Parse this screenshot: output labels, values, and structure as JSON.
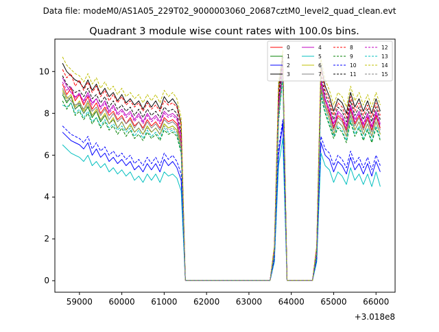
{
  "header": {
    "datafile": "Data file: modeM0/AS1A05_229T02_9000003060_20687cztM0_level2_quad_clean.evt"
  },
  "chart_data": {
    "type": "line",
    "title": "Quadrant 3 module wise count rates with 100.0s bins.",
    "xlabel": "",
    "ylabel": "",
    "offset_label": "+3.018e8",
    "xlim": [
      58420,
      66450
    ],
    "ylim": [
      -0.55,
      11.55
    ],
    "xticks": [
      59000,
      60000,
      61000,
      62000,
      63000,
      64000,
      65000,
      66000
    ],
    "yticks": [
      0,
      2,
      4,
      6,
      8,
      10
    ],
    "legend_position": "top-right",
    "colors": [
      "#ff0000",
      "#008000",
      "#0000ff",
      "#000000",
      "#bf00bf",
      "#00bfbf",
      "#bfbf00",
      "#808080",
      "#ff0000",
      "#008000",
      "#0000ff",
      "#000000",
      "#bf00bf",
      "#00bfbf",
      "#bfbf00",
      "#808080"
    ],
    "styles": [
      "solid",
      "solid",
      "solid",
      "solid",
      "solid",
      "solid",
      "solid",
      "solid",
      "dashed",
      "dashed",
      "dashed",
      "dashed",
      "dashed",
      "dashed",
      "dashed",
      "dashed"
    ],
    "x": [
      58600,
      58700,
      58800,
      58900,
      59000,
      59100,
      59200,
      59300,
      59400,
      59500,
      59600,
      59700,
      59800,
      59900,
      60000,
      60100,
      60200,
      60300,
      60400,
      60500,
      60600,
      60700,
      60800,
      60900,
      61000,
      61100,
      61200,
      61300,
      61400,
      61500,
      61600,
      62500,
      63000,
      63500,
      63600,
      63700,
      63800,
      63900,
      64000,
      64500,
      64600,
      64700,
      64800,
      64900,
      65000,
      65100,
      65200,
      65300,
      65400,
      65500,
      65600,
      65700,
      65800,
      65900,
      66000,
      66100
    ],
    "series": [
      {
        "name": "0",
        "values": [
          9.4,
          8.9,
          9.2,
          8.6,
          8.9,
          8.4,
          8.8,
          8.2,
          8.5,
          8.0,
          8.3,
          7.9,
          8.1,
          7.7,
          7.9,
          7.5,
          7.8,
          7.4,
          7.6,
          7.3,
          7.7,
          7.4,
          7.6,
          7.3,
          7.8,
          7.6,
          7.7,
          7.5,
          6.6,
          0.02,
          0.02,
          0.02,
          0.02,
          0.02,
          1.4,
          8.2,
          10.4,
          0.02,
          0.02,
          0.02,
          1.4,
          9.5,
          8.6,
          8.0,
          7.3,
          7.9,
          7.7,
          7.2,
          8.2,
          7.5,
          7.9,
          7.3,
          7.8,
          7.2,
          7.9,
          7.3
        ]
      },
      {
        "name": "1",
        "values": [
          8.9,
          8.5,
          8.8,
          8.2,
          8.4,
          8.0,
          8.3,
          7.8,
          8.1,
          7.6,
          7.9,
          7.5,
          7.7,
          7.3,
          7.6,
          7.2,
          7.5,
          7.1,
          7.3,
          7.0,
          7.4,
          7.1,
          7.3,
          7.0,
          7.5,
          7.3,
          7.4,
          7.2,
          6.3,
          0.02,
          0.02,
          0.02,
          0.02,
          0.02,
          1.3,
          7.9,
          10.0,
          0.02,
          0.02,
          0.02,
          1.3,
          9.1,
          8.3,
          7.7,
          7.0,
          7.6,
          7.4,
          6.9,
          7.9,
          7.2,
          7.6,
          7.0,
          7.5,
          6.9,
          7.6,
          7.0
        ]
      },
      {
        "name": "2",
        "values": [
          7.1,
          6.9,
          6.7,
          6.6,
          6.5,
          6.3,
          6.6,
          6.0,
          6.3,
          5.9,
          6.1,
          5.7,
          5.9,
          5.6,
          5.8,
          5.5,
          5.7,
          5.3,
          5.5,
          5.2,
          5.6,
          5.3,
          5.6,
          5.2,
          5.8,
          5.5,
          5.7,
          5.4,
          4.8,
          0.02,
          0.02,
          0.02,
          0.02,
          0.02,
          1.0,
          6.0,
          7.5,
          0.02,
          0.02,
          0.02,
          1.0,
          6.6,
          6.0,
          5.8,
          5.2,
          5.7,
          5.5,
          5.1,
          5.9,
          5.3,
          5.6,
          5.1,
          5.6,
          5.0,
          5.7,
          5.2
        ]
      },
      {
        "name": "3",
        "values": [
          10.4,
          10.0,
          9.8,
          9.6,
          9.5,
          9.2,
          9.6,
          9.1,
          9.4,
          8.9,
          9.2,
          8.8,
          9.0,
          8.6,
          8.9,
          8.5,
          8.7,
          8.4,
          8.6,
          8.2,
          8.6,
          8.3,
          8.6,
          8.2,
          8.8,
          8.5,
          8.7,
          8.4,
          7.5,
          0.02,
          0.02,
          0.02,
          0.02,
          0.02,
          1.6,
          9.2,
          10.8,
          0.02,
          0.02,
          0.02,
          1.6,
          10.3,
          9.3,
          8.8,
          8.1,
          8.7,
          8.5,
          8.0,
          9.0,
          8.3,
          8.7,
          8.1,
          8.6,
          8.0,
          8.7,
          8.1
        ]
      },
      {
        "name": "4",
        "values": [
          9.7,
          9.3,
          9.0,
          8.8,
          8.9,
          8.6,
          9.0,
          8.5,
          8.7,
          8.3,
          8.6,
          8.1,
          8.4,
          8.0,
          8.2,
          7.9,
          8.1,
          7.7,
          8.0,
          7.6,
          8.0,
          7.7,
          7.9,
          7.6,
          8.1,
          7.9,
          8.0,
          7.8,
          6.9,
          0.02,
          0.02,
          0.02,
          0.02,
          0.02,
          1.5,
          8.5,
          10.3,
          0.02,
          0.02,
          0.02,
          1.5,
          9.6,
          8.7,
          8.2,
          7.5,
          8.1,
          7.9,
          7.4,
          8.4,
          7.7,
          8.1,
          7.5,
          8.0,
          7.4,
          8.1,
          7.5
        ]
      },
      {
        "name": "5",
        "values": [
          6.5,
          6.3,
          6.1,
          6.0,
          5.9,
          5.7,
          6.0,
          5.5,
          5.7,
          5.4,
          5.6,
          5.2,
          5.4,
          5.1,
          5.3,
          5.0,
          5.2,
          4.8,
          5.0,
          4.7,
          5.1,
          4.8,
          5.1,
          4.7,
          5.2,
          5.0,
          5.1,
          4.9,
          4.3,
          0.02,
          0.02,
          0.02,
          0.02,
          0.02,
          0.9,
          5.5,
          6.8,
          0.02,
          0.02,
          0.02,
          0.9,
          6.1,
          5.5,
          5.3,
          4.7,
          5.2,
          5.0,
          4.6,
          5.4,
          4.8,
          5.1,
          4.6,
          5.1,
          4.5,
          5.2,
          4.5
        ]
      },
      {
        "name": "6",
        "values": [
          9.1,
          8.7,
          8.9,
          8.3,
          8.6,
          8.1,
          8.5,
          7.9,
          8.2,
          7.7,
          8.0,
          7.5,
          7.8,
          7.3,
          7.6,
          7.2,
          7.5,
          7.1,
          7.3,
          7.0,
          7.4,
          7.1,
          7.3,
          7.0,
          7.5,
          7.3,
          7.4,
          7.2,
          6.3,
          0.02,
          0.02,
          0.02,
          0.02,
          0.02,
          1.3,
          7.9,
          10.1,
          0.02,
          0.02,
          0.02,
          1.3,
          9.2,
          8.3,
          7.7,
          7.0,
          7.6,
          7.4,
          6.9,
          7.9,
          7.2,
          7.6,
          7.0,
          7.5,
          6.9,
          7.6,
          7.0
        ]
      },
      {
        "name": "7",
        "values": [
          9.2,
          8.8,
          8.6,
          8.4,
          8.5,
          8.2,
          8.6,
          8.1,
          8.3,
          7.9,
          8.2,
          7.7,
          8.0,
          7.6,
          7.8,
          7.5,
          7.7,
          7.3,
          7.6,
          7.2,
          7.6,
          7.3,
          7.5,
          7.2,
          7.7,
          7.5,
          7.6,
          7.4,
          6.5,
          0.02,
          0.02,
          0.02,
          0.02,
          0.02,
          1.4,
          8.1,
          10.2,
          0.02,
          0.02,
          0.02,
          1.4,
          9.3,
          8.4,
          7.9,
          7.2,
          7.8,
          7.6,
          7.1,
          8.1,
          7.4,
          7.8,
          7.2,
          7.7,
          7.1,
          7.8,
          7.2
        ]
      },
      {
        "name": "8",
        "values": [
          10.1,
          9.7,
          9.9,
          9.3,
          9.6,
          9.1,
          9.5,
          9.0,
          9.3,
          8.8,
          9.1,
          8.6,
          8.9,
          8.5,
          8.8,
          8.4,
          8.6,
          8.3,
          8.5,
          8.1,
          8.5,
          8.2,
          8.4,
          8.1,
          8.6,
          8.4,
          8.5,
          8.3,
          7.4,
          0.02,
          0.02,
          0.02,
          0.02,
          0.02,
          1.6,
          9.0,
          10.6,
          0.02,
          0.02,
          0.02,
          1.6,
          10.1,
          9.1,
          8.6,
          7.9,
          8.5,
          8.3,
          7.8,
          8.8,
          8.1,
          8.5,
          7.9,
          8.4,
          7.8,
          8.5,
          7.9
        ]
      },
      {
        "name": "9",
        "values": [
          8.6,
          8.2,
          8.5,
          7.9,
          8.1,
          7.7,
          8.0,
          7.5,
          7.8,
          7.3,
          7.6,
          7.2,
          7.4,
          7.0,
          7.3,
          6.9,
          7.2,
          6.8,
          7.0,
          6.7,
          7.1,
          6.8,
          7.0,
          6.7,
          7.2,
          7.0,
          7.1,
          6.9,
          6.1,
          0.02,
          0.02,
          0.02,
          0.02,
          0.02,
          1.2,
          7.6,
          9.8,
          0.02,
          0.02,
          0.02,
          1.2,
          8.8,
          8.0,
          7.4,
          6.8,
          7.3,
          7.1,
          6.6,
          7.6,
          6.9,
          7.3,
          6.7,
          7.2,
          6.6,
          7.3,
          6.7
        ]
      },
      {
        "name": "10",
        "values": [
          7.4,
          7.2,
          7.0,
          6.9,
          6.8,
          6.6,
          6.9,
          6.3,
          6.6,
          6.2,
          6.4,
          6.0,
          6.2,
          5.9,
          6.1,
          5.8,
          6.0,
          5.6,
          5.8,
          5.5,
          5.9,
          5.6,
          5.9,
          5.5,
          6.1,
          5.8,
          6.0,
          5.7,
          5.1,
          0.02,
          0.02,
          0.02,
          0.02,
          0.02,
          1.0,
          6.3,
          7.7,
          0.02,
          0.02,
          0.02,
          1.0,
          6.9,
          6.3,
          6.1,
          5.5,
          6.0,
          5.8,
          5.4,
          6.2,
          5.6,
          5.9,
          5.4,
          5.9,
          5.3,
          6.0,
          5.5
        ]
      },
      {
        "name": "11",
        "values": [
          9.8,
          9.4,
          9.2,
          9.0,
          9.1,
          8.8,
          9.2,
          8.7,
          8.9,
          8.5,
          8.8,
          8.3,
          8.6,
          8.2,
          8.4,
          8.1,
          8.3,
          7.9,
          8.2,
          7.8,
          8.2,
          7.9,
          8.1,
          7.8,
          8.3,
          8.1,
          8.2,
          8.0,
          7.1,
          0.02,
          0.02,
          0.02,
          0.02,
          0.02,
          1.5,
          8.7,
          10.5,
          0.02,
          0.02,
          0.02,
          1.5,
          9.8,
          8.9,
          8.4,
          7.7,
          8.3,
          8.1,
          7.6,
          8.6,
          7.9,
          8.3,
          7.7,
          8.2,
          7.6,
          8.3,
          7.7
        ]
      },
      {
        "name": "12",
        "values": [
          9.5,
          9.1,
          9.3,
          8.7,
          9.0,
          8.5,
          8.9,
          8.4,
          8.7,
          8.2,
          8.5,
          8.0,
          8.3,
          7.9,
          8.1,
          7.8,
          8.0,
          7.6,
          7.9,
          7.5,
          7.9,
          7.6,
          7.8,
          7.5,
          8.0,
          7.8,
          7.9,
          7.7,
          6.8,
          0.02,
          0.02,
          0.02,
          0.02,
          0.02,
          1.5,
          8.4,
          10.2,
          0.02,
          0.02,
          0.02,
          1.5,
          9.5,
          8.6,
          8.1,
          7.4,
          8.0,
          7.8,
          7.3,
          8.3,
          7.6,
          8.0,
          7.4,
          7.9,
          7.3,
          8.0,
          7.4
        ]
      },
      {
        "name": "13",
        "values": [
          8.4,
          8.3,
          8.5,
          8.0,
          8.2,
          7.8,
          8.1,
          7.6,
          7.8,
          7.4,
          7.7,
          7.3,
          7.5,
          7.2,
          7.4,
          7.1,
          7.3,
          6.9,
          7.2,
          6.8,
          7.2,
          6.9,
          7.1,
          6.8,
          7.3,
          7.1,
          7.2,
          7.0,
          6.2,
          0.02,
          0.02,
          0.02,
          0.02,
          0.02,
          1.3,
          7.7,
          9.6,
          0.02,
          0.02,
          0.02,
          1.3,
          8.9,
          8.1,
          7.5,
          6.9,
          7.4,
          7.2,
          6.7,
          7.7,
          7.0,
          7.4,
          6.8,
          7.3,
          6.7,
          7.4,
          6.8
        ]
      },
      {
        "name": "14",
        "values": [
          10.7,
          10.3,
          10.1,
          9.9,
          9.8,
          9.5,
          9.9,
          9.4,
          9.7,
          9.2,
          9.5,
          9.1,
          9.3,
          8.9,
          9.2,
          8.8,
          9.0,
          8.7,
          8.9,
          8.5,
          8.9,
          8.6,
          8.9,
          8.5,
          9.1,
          8.8,
          9.0,
          8.7,
          7.8,
          0.02,
          0.02,
          0.02,
          0.02,
          0.02,
          1.7,
          9.5,
          11.0,
          0.02,
          0.02,
          0.02,
          1.7,
          10.6,
          9.6,
          9.1,
          8.4,
          9.0,
          8.8,
          8.3,
          9.3,
          8.6,
          9.0,
          8.4,
          8.9,
          8.3,
          9.0,
          8.4
        ]
      },
      {
        "name": "15",
        "values": [
          9.0,
          8.6,
          8.8,
          8.2,
          8.5,
          8.0,
          8.4,
          7.9,
          8.1,
          7.7,
          7.9,
          7.5,
          7.7,
          7.3,
          7.6,
          7.2,
          7.4,
          7.1,
          7.3,
          7.0,
          7.3,
          7.1,
          7.3,
          7.0,
          7.4,
          7.2,
          7.3,
          7.1,
          6.3,
          0.02,
          0.02,
          0.02,
          0.02,
          0.02,
          1.3,
          7.9,
          9.9,
          0.02,
          0.02,
          0.02,
          1.3,
          9.1,
          8.3,
          7.7,
          7.0,
          7.6,
          7.4,
          6.9,
          7.9,
          7.2,
          7.6,
          7.0,
          7.5,
          6.9,
          7.6,
          7.0
        ]
      }
    ]
  }
}
